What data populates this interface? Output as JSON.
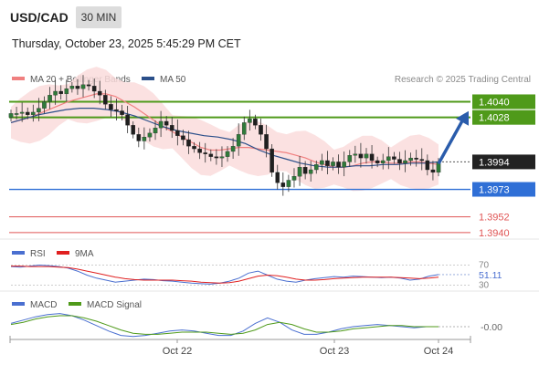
{
  "header": {
    "symbol": "USD/CAD",
    "timeframe": "30 MIN",
    "datetime": "Thursday, October 23, 2025 5:45:29 PM CET"
  },
  "legend": {
    "items": [
      {
        "label": "MA 20 + Bollinger Bands",
        "color": "#f08080"
      },
      {
        "label": "MA 50",
        "color": "#2b4f8a"
      }
    ],
    "credit": "Research © 2025 Trading Central"
  },
  "chart_data": [
    {
      "type": "candlestick",
      "title": "USD/CAD",
      "x": [
        "Oct 22",
        "Oct 23",
        "Oct 24"
      ],
      "ylim": [
        1.3935,
        1.4048
      ],
      "resistance_levels": [
        {
          "value": 1.404,
          "label": "1.4040",
          "color": "#4f9a1a"
        },
        {
          "value": 1.4028,
          "label": "1.4028",
          "color": "#4f9a1a"
        }
      ],
      "support_levels": [
        {
          "value": 1.3973,
          "label": "1.3973",
          "color": "#2f6fd6"
        },
        {
          "value": 1.3952,
          "label": "1.3952",
          "color": "#e05555"
        },
        {
          "value": 1.394,
          "label": "1.3940",
          "color": "#e05555"
        }
      ],
      "last_price": {
        "value": 1.3994,
        "label": "1.3994"
      },
      "close_series": [
        1.4031,
        1.4031,
        1.4032,
        1.403,
        1.4032,
        1.4035,
        1.404,
        1.4045,
        1.4048,
        1.4046,
        1.405,
        1.4052,
        1.405,
        1.4053,
        1.4052,
        1.4048,
        1.4045,
        1.4038,
        1.4034,
        1.4033,
        1.403,
        1.4022,
        1.4015,
        1.401,
        1.4013,
        1.4016,
        1.402,
        1.4025,
        1.4022,
        1.4018,
        1.4014,
        1.4011,
        1.4006,
        1.4004,
        1.4001,
        1.4,
        1.3998,
        1.3997,
        1.3998,
        1.4002,
        1.4006,
        1.4015,
        1.4024,
        1.4027,
        1.4022,
        1.4015,
        1.4004,
        1.3986,
        1.3978,
        1.3975,
        1.398,
        1.3983,
        1.399,
        1.3985,
        1.3988,
        1.3992,
        1.3995,
        1.3991,
        1.3994,
        1.399,
        1.3994,
        1.3999,
        1.4,
        1.3997,
        1.4,
        1.3995,
        1.3993,
        1.3995,
        1.3998,
        1.3996,
        1.3993,
        1.3995,
        1.3997,
        1.3996,
        1.3995,
        1.3988,
        1.3986,
        1.3994
      ],
      "ma20": [
        1.4024,
        1.4026,
        1.4028,
        1.4031,
        1.4034,
        1.4037,
        1.404,
        1.4042,
        1.4044,
        1.4046,
        1.4046,
        1.4044,
        1.404,
        1.4036,
        1.4031,
        1.4026,
        1.4021,
        1.4017,
        1.4013,
        1.4009,
        1.4005,
        1.4003,
        1.4003,
        1.4004,
        1.4005,
        1.4005,
        1.4004,
        1.4003,
        1.4002,
        1.4001,
        1.3999,
        1.3997,
        1.3994,
        1.3992,
        1.399,
        1.399,
        1.3991,
        1.3993,
        1.3994,
        1.3994,
        1.3993,
        1.3993,
        1.3994,
        1.3994,
        1.3993,
        1.3992
      ],
      "ma50": [
        1.4024,
        1.4027,
        1.403,
        1.4032,
        1.4034,
        1.4035,
        1.4035,
        1.4034,
        1.4032,
        1.4029,
        1.4025,
        1.4021,
        1.4018,
        1.4016,
        1.4014,
        1.4013,
        1.4011,
        1.4008,
        1.4003,
        1.3999,
        1.3996,
        1.3993,
        1.3991,
        1.399,
        1.399,
        1.3991,
        1.3991,
        1.3992,
        1.3992,
        1.3993,
        1.3993,
        1.3994
      ]
    },
    {
      "type": "line",
      "title": "RSI",
      "series": [
        {
          "name": "RSI",
          "color": "#4a6fd0",
          "values": [
            67,
            66,
            68,
            70,
            69,
            67,
            64,
            58,
            50,
            44,
            40,
            36,
            38,
            40,
            42,
            41,
            39,
            38,
            36,
            34,
            33,
            32,
            34,
            38,
            44,
            54,
            58,
            50,
            42,
            38,
            36,
            40,
            43,
            45,
            47,
            46,
            48,
            47,
            46,
            45,
            46,
            44,
            40,
            42,
            48,
            51
          ]
        },
        {
          "name": "9MA",
          "color": "#e02020",
          "values": [
            68,
            68,
            67,
            67,
            67,
            66,
            65,
            62,
            58,
            54,
            50,
            46,
            43,
            41,
            40,
            40,
            40,
            40,
            39,
            38,
            36,
            35,
            34,
            35,
            38,
            43,
            48,
            50,
            49,
            46,
            42,
            40,
            40,
            41,
            43,
            44,
            45,
            46,
            46,
            46,
            46,
            45,
            44,
            43,
            44,
            46
          ]
        }
      ],
      "levels": [
        70,
        30
      ],
      "level_labels": [
        "70",
        "30"
      ],
      "last_value": "51.11"
    },
    {
      "type": "line",
      "title": "MACD",
      "series": [
        {
          "name": "MACD",
          "color": "#4a6fd0",
          "values": [
            0.0003,
            0.0006,
            0.0009,
            0.0011,
            0.0012,
            0.001,
            0.0006,
            0.0001,
            -0.0004,
            -0.0008,
            -0.0009,
            -0.0008,
            -0.0006,
            -0.0004,
            -0.0003,
            -0.0004,
            -0.0006,
            -0.0008,
            -0.0008,
            -0.0004,
            0.0003,
            0.0008,
            0.0004,
            -0.0003,
            -0.0007,
            -0.0007,
            -0.0005,
            -0.0002,
            0.0,
            0.0001,
            0.0002,
            0.0001,
            0.0,
            -0.0001,
            0.0,
            0.0
          ]
        },
        {
          "name": "MACD Signal",
          "color": "#4f9a1a",
          "values": [
            0.0002,
            0.0004,
            0.0007,
            0.0009,
            0.001,
            0.001,
            0.0008,
            0.0005,
            0.0001,
            -0.0003,
            -0.0006,
            -0.0007,
            -0.0007,
            -0.0006,
            -0.0005,
            -0.0005,
            -0.0005,
            -0.0006,
            -0.0007,
            -0.0006,
            -0.0003,
            0.0002,
            0.0004,
            0.0002,
            -0.0002,
            -0.0005,
            -0.0005,
            -0.0004,
            -0.0002,
            -0.0001,
            0.0,
            0.0001,
            0.0001,
            0.0,
            0.0,
            0.0
          ]
        }
      ],
      "last_value": "-0.00"
    }
  ],
  "xaxis": {
    "ticks": [
      "Oct 22",
      "Oct 23",
      "Oct 24"
    ]
  }
}
